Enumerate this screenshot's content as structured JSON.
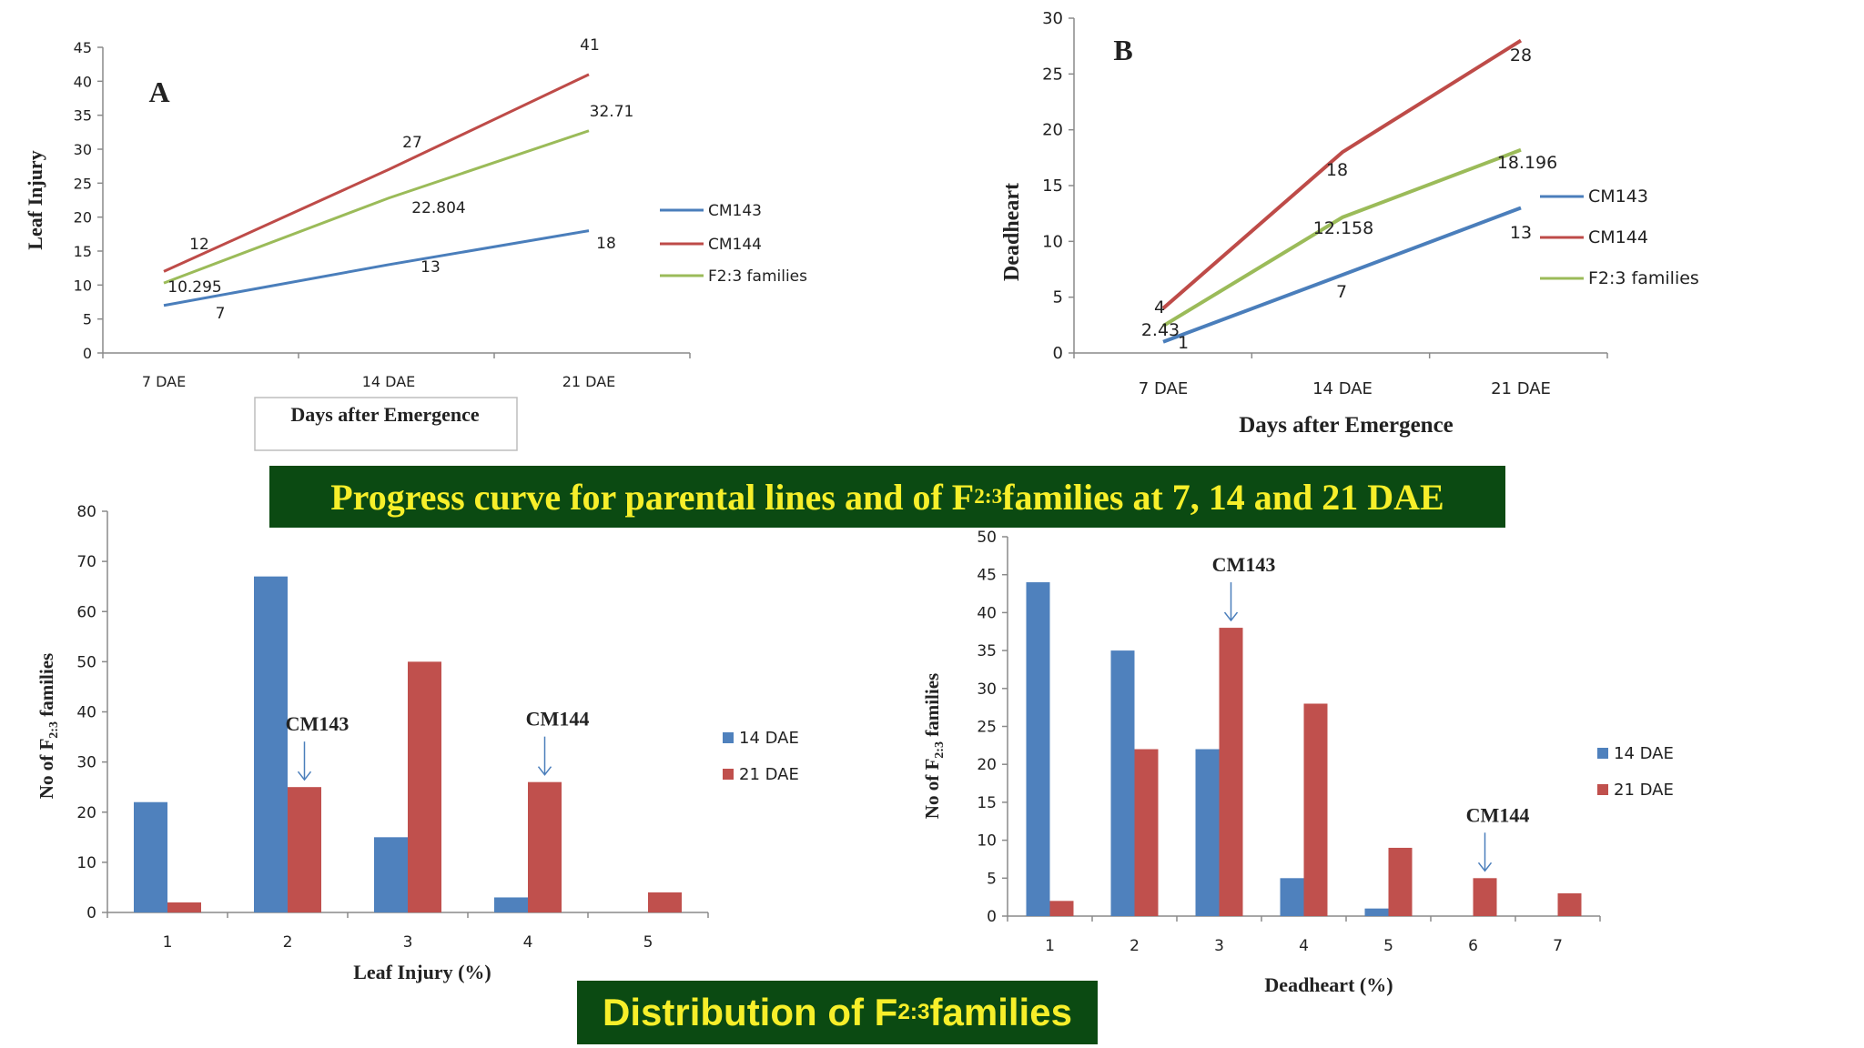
{
  "banners": {
    "top": {
      "before": "Progress curve for parental lines and of F",
      "sub": "2:3",
      "after": " families at 7, 14 and 21 DAE"
    },
    "bottom": {
      "before": "Distribution of F",
      "sub": "2:3",
      "after": " families"
    }
  },
  "colors": {
    "blue": "#4a7ebb",
    "red": "#be4b48",
    "green": "#9bbb59",
    "bar_blue": "#4f81bd",
    "bar_red": "#c0504d",
    "banner_bg": "#0b4a12",
    "banner_text": "#f7ef2a"
  },
  "chart_data": [
    {
      "type": "line",
      "panel_label": "A",
      "categories": [
        "7 DAE",
        "14 DAE",
        "21 DAE"
      ],
      "xlabel": "Days after Emergence",
      "ylabel": "Leaf Injury",
      "ylim": [
        0,
        45
      ],
      "yticks": [
        0,
        5,
        10,
        15,
        20,
        25,
        30,
        35,
        40,
        45
      ],
      "grid": false,
      "legend_position": "right",
      "series": [
        {
          "name": "CM143",
          "values": [
            7,
            13,
            18
          ],
          "labels": [
            "7",
            "13",
            "18"
          ]
        },
        {
          "name": "CM144",
          "values": [
            12,
            27,
            41
          ],
          "labels": [
            "12",
            "27",
            "41"
          ]
        },
        {
          "name": "F2:3 families",
          "values": [
            10.295,
            22.804,
            32.71
          ],
          "labels": [
            "10.295",
            "22.804",
            "32.71"
          ]
        }
      ]
    },
    {
      "type": "line",
      "panel_label": "B",
      "categories": [
        "7 DAE",
        "14 DAE",
        "21 DAE"
      ],
      "xlabel": "Days after Emergence",
      "ylabel": "Deadheart",
      "ylim": [
        0,
        30
      ],
      "yticks": [
        0,
        5,
        10,
        15,
        20,
        25,
        30
      ],
      "grid": false,
      "legend_position": "right",
      "series": [
        {
          "name": "CM143",
          "values": [
            1,
            7,
            13
          ],
          "labels": [
            "1",
            "7",
            "13"
          ]
        },
        {
          "name": "CM144",
          "values": [
            4,
            18,
            28
          ],
          "labels": [
            "4",
            "18",
            "28"
          ]
        },
        {
          "name": "F2:3 families",
          "values": [
            2.43,
            12.158,
            18.196
          ],
          "labels": [
            "2.43",
            "12.158",
            "18.196"
          ]
        }
      ]
    },
    {
      "type": "bar",
      "categories": [
        "1",
        "2",
        "3",
        "4",
        "5"
      ],
      "xlabel": "Leaf Injury (%)",
      "ylabel": {
        "before": "No of F",
        "sub": "2:3",
        "after": " families"
      },
      "ylim": [
        0,
        80
      ],
      "yticks": [
        0,
        10,
        20,
        30,
        40,
        50,
        60,
        70,
        80
      ],
      "grid": false,
      "legend_position": "right",
      "series": [
        {
          "name": "14 DAE",
          "values": [
            22,
            67,
            15,
            3,
            0
          ]
        },
        {
          "name": "21 DAE",
          "values": [
            2,
            25,
            50,
            26,
            4
          ]
        }
      ],
      "annotations": [
        {
          "text": "CM143",
          "category": "2",
          "series": 1
        },
        {
          "text": "CM144",
          "category": "4",
          "series": 1
        }
      ]
    },
    {
      "type": "bar",
      "categories": [
        "1",
        "2",
        "3",
        "4",
        "5",
        "6",
        "7"
      ],
      "xlabel": "Deadheart (%)",
      "ylabel": {
        "before": "No of F",
        "sub": "2:3",
        "after": " families"
      },
      "ylim": [
        0,
        50
      ],
      "yticks": [
        0,
        5,
        10,
        15,
        20,
        25,
        30,
        35,
        40,
        45,
        50
      ],
      "grid": false,
      "legend_position": "right",
      "series": [
        {
          "name": "14 DAE",
          "values": [
            44,
            35,
            22,
            5,
            1,
            0,
            0
          ]
        },
        {
          "name": "21 DAE",
          "values": [
            2,
            22,
            38,
            28,
            9,
            5,
            3
          ]
        }
      ],
      "annotations": [
        {
          "text": "CM143",
          "category": "3",
          "series": 1
        },
        {
          "text": "CM144",
          "category": "6",
          "series": 1
        }
      ]
    }
  ]
}
